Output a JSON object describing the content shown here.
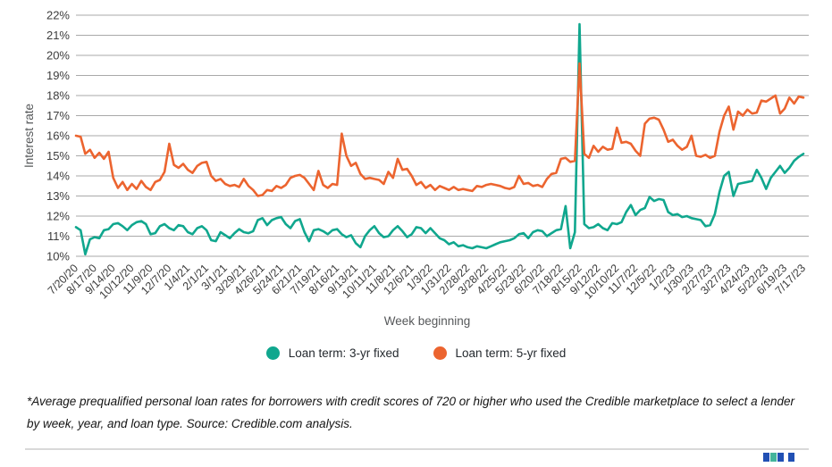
{
  "chart_data": {
    "type": "line",
    "title": "",
    "xlabel": "Week beginning",
    "ylabel": "Interest rate",
    "ylim": [
      10,
      22
    ],
    "y_tick_labels": [
      "22%",
      "21%",
      "20%",
      "19%",
      "18%",
      "17%",
      "16%",
      "15%",
      "14%",
      "13%",
      "12%",
      "11%",
      "10%"
    ],
    "grid": "horizontal",
    "legend_position": "bottom",
    "x_tick_interval_weeks": 4,
    "x_tick_labels": [
      "7/20/20",
      "8/17/20",
      "9/14/20",
      "10/12/20",
      "11/9/20",
      "12/7/20",
      "1/4/21",
      "2/1/21",
      "3/1/21",
      "3/29/21",
      "4/26/21",
      "5/24/21",
      "6/21/21",
      "7/19/21",
      "8/16/21",
      "9/13/21",
      "10/11/21",
      "11/8/21",
      "12/6/21",
      "1/3/22",
      "1/31/22",
      "2/28/22",
      "3/28/22",
      "4/25/22",
      "5/23/22",
      "6/20/22",
      "7/18/22",
      "8/15/22",
      "9/12/22",
      "10/10/22",
      "11/7/22",
      "12/5/22",
      "1/2/23",
      "1/30/23",
      "2/27/23",
      "3/27/23",
      "4/24/23",
      "5/22/23",
      "6/19/23",
      "7/17/23"
    ],
    "series": [
      {
        "name": "Loan term: 3-yr fixed",
        "color": "#10a78e",
        "values": [
          11.45,
          11.3,
          10.1,
          10.85,
          10.95,
          10.9,
          11.3,
          11.35,
          11.6,
          11.65,
          11.5,
          11.3,
          11.55,
          11.7,
          11.75,
          11.6,
          11.1,
          11.15,
          11.5,
          11.6,
          11.4,
          11.3,
          11.55,
          11.5,
          11.2,
          11.1,
          11.4,
          11.5,
          11.3,
          10.8,
          10.75,
          11.2,
          11.05,
          10.9,
          11.15,
          11.35,
          11.2,
          11.15,
          11.25,
          11.8,
          11.9,
          11.55,
          11.8,
          11.9,
          11.95,
          11.6,
          11.4,
          11.75,
          11.85,
          11.2,
          10.75,
          11.3,
          11.35,
          11.25,
          11.1,
          11.3,
          11.35,
          11.1,
          10.95,
          11.05,
          10.65,
          10.45,
          11.0,
          11.3,
          11.5,
          11.15,
          10.95,
          11.0,
          11.3,
          11.5,
          11.25,
          10.95,
          11.1,
          11.45,
          11.4,
          11.15,
          11.4,
          11.15,
          10.9,
          10.8,
          10.6,
          10.7,
          10.5,
          10.55,
          10.45,
          10.4,
          10.5,
          10.45,
          10.4,
          10.5,
          10.6,
          10.7,
          10.75,
          10.8,
          10.9,
          11.1,
          11.15,
          10.9,
          11.2,
          11.3,
          11.25,
          11.0,
          11.15,
          11.3,
          11.35,
          12.5,
          10.4,
          11.2,
          21.55,
          11.6,
          11.4,
          11.45,
          11.6,
          11.4,
          11.3,
          11.65,
          11.6,
          11.7,
          12.2,
          12.55,
          12.05,
          12.3,
          12.4,
          12.95,
          12.75,
          12.85,
          12.8,
          12.2,
          12.05,
          12.1,
          11.95,
          12.0,
          11.9,
          11.85,
          11.8,
          11.5,
          11.55,
          12.1,
          13.2,
          14.0,
          14.2,
          13.0,
          13.6,
          13.65,
          13.7,
          13.75,
          14.3,
          13.9,
          13.35,
          13.9,
          14.2,
          14.5,
          14.15,
          14.4,
          14.75,
          14.95,
          15.1
        ]
      },
      {
        "name": "Loan term: 5-yr fixed",
        "color": "#ec642f",
        "values": [
          16.0,
          15.95,
          15.1,
          15.3,
          14.9,
          15.15,
          14.85,
          15.2,
          13.9,
          13.4,
          13.7,
          13.3,
          13.6,
          13.35,
          13.75,
          13.45,
          13.3,
          13.7,
          13.8,
          14.2,
          15.6,
          14.55,
          14.4,
          14.6,
          14.3,
          14.15,
          14.5,
          14.65,
          14.7,
          14.0,
          13.75,
          13.85,
          13.6,
          13.5,
          13.55,
          13.45,
          13.85,
          13.5,
          13.3,
          13.0,
          13.05,
          13.3,
          13.25,
          13.5,
          13.4,
          13.55,
          13.9,
          14.0,
          14.05,
          13.9,
          13.6,
          13.3,
          14.25,
          13.55,
          13.4,
          13.6,
          13.55,
          16.1,
          15.0,
          14.5,
          14.65,
          14.1,
          13.85,
          13.9,
          13.85,
          13.8,
          13.6,
          14.2,
          13.9,
          14.85,
          14.3,
          14.35,
          14.0,
          13.55,
          13.7,
          13.4,
          13.55,
          13.3,
          13.5,
          13.4,
          13.3,
          13.45,
          13.3,
          13.35,
          13.3,
          13.25,
          13.5,
          13.45,
          13.55,
          13.6,
          13.55,
          13.5,
          13.4,
          13.35,
          13.45,
          14.0,
          13.6,
          13.65,
          13.5,
          13.55,
          13.45,
          13.85,
          14.1,
          14.15,
          14.85,
          14.9,
          14.7,
          14.75,
          19.6,
          15.1,
          14.9,
          15.5,
          15.2,
          15.45,
          15.3,
          15.35,
          16.4,
          15.65,
          15.7,
          15.6,
          15.25,
          15.0,
          16.6,
          16.85,
          16.9,
          16.8,
          16.3,
          15.7,
          15.8,
          15.5,
          15.3,
          15.45,
          16.0,
          15.0,
          14.95,
          15.05,
          14.9,
          15.0,
          16.2,
          17.0,
          17.45,
          16.3,
          17.2,
          17.0,
          17.3,
          17.1,
          17.15,
          17.75,
          17.7,
          17.85,
          18.0,
          17.1,
          17.35,
          17.9,
          17.6,
          17.95,
          17.9
        ]
      }
    ],
    "style": {
      "gridline_color": "#a9a9a9",
      "tick_label_color": "#3c3c3c",
      "axis_title_color": "#56585a",
      "line_width": 2.6
    }
  },
  "footnote": "*Average prequalified personal loan rates for borrowers with credit scores of 720 or higher who used the Credible marketplace to select a lender by week, year, and loan type. Source: Credible.com analysis.",
  "branding": {
    "logo_bar_colors": [
      "#2150b4",
      "#43b49b",
      "#2150b4",
      "#2150b4"
    ]
  }
}
